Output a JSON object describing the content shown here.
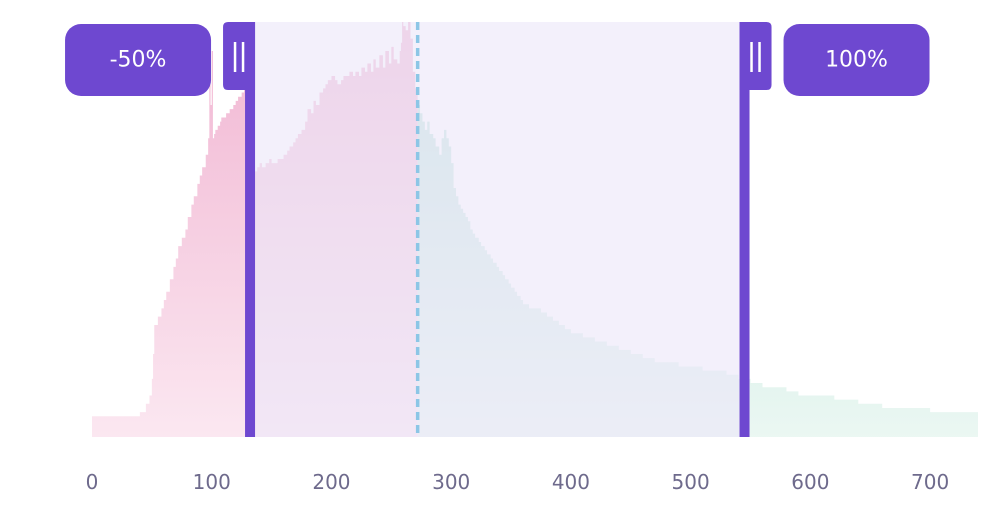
{
  "chart_data": {
    "type": "area",
    "title": "",
    "xlabel": "",
    "ylabel": "",
    "xlim": [
      0,
      740
    ],
    "ylim": [
      0,
      100
    ],
    "grid": false,
    "x_ticks": [
      0,
      100,
      200,
      300,
      400,
      500,
      600,
      700
    ],
    "x_tick_labels": [
      "0",
      "100",
      "200",
      "300",
      "400",
      "500",
      "600",
      "700"
    ],
    "marker_value": 272,
    "range": {
      "start": 132,
      "end": 545,
      "start_label": "-50%",
      "end_label": "100%"
    },
    "colors": {
      "left_area": "#f2b8d4",
      "right_area": "#bfe6d6",
      "range_fill": "#ece6f9",
      "handle": "#6e48d0",
      "marker": "#8cc6e6",
      "tick_text": "#6e6a8c"
    },
    "x": [
      0,
      30,
      40,
      45,
      48,
      50,
      51,
      52,
      55,
      58,
      60,
      62,
      65,
      68,
      70,
      72,
      75,
      78,
      80,
      83,
      85,
      88,
      90,
      92,
      95,
      97,
      98,
      99,
      100,
      101,
      102,
      103,
      105,
      107,
      108,
      110,
      112,
      115,
      118,
      120,
      122,
      125,
      127,
      130,
      132,
      135,
      138,
      140,
      142,
      145,
      148,
      150,
      152,
      155,
      158,
      160,
      163,
      165,
      168,
      170,
      172,
      175,
      178,
      180,
      183,
      185,
      187,
      190,
      193,
      195,
      197,
      200,
      203,
      205,
      208,
      210,
      212,
      215,
      218,
      220,
      223,
      225,
      228,
      230,
      233,
      235,
      237,
      240,
      243,
      245,
      248,
      250,
      252,
      255,
      257,
      258,
      259,
      260,
      262,
      264,
      266,
      268,
      270,
      272,
      274,
      276,
      278,
      280,
      282,
      285,
      287,
      290,
      292,
      294,
      296,
      298,
      300,
      302,
      304,
      306,
      308,
      310,
      312,
      314,
      316,
      318,
      320,
      323,
      325,
      328,
      330,
      333,
      335,
      338,
      340,
      343,
      345,
      348,
      350,
      353,
      355,
      358,
      360,
      365,
      370,
      375,
      380,
      385,
      390,
      395,
      400,
      410,
      420,
      430,
      440,
      450,
      460,
      470,
      480,
      490,
      500,
      510,
      520,
      530,
      540,
      550,
      560,
      570,
      580,
      590,
      600,
      620,
      640,
      660,
      680,
      700,
      720,
      740
    ],
    "values": [
      5,
      5,
      6,
      8,
      10,
      14,
      20,
      27,
      29,
      31,
      33,
      35,
      38,
      41,
      43,
      46,
      48,
      50,
      53,
      56,
      58,
      61,
      63,
      65,
      68,
      72,
      85,
      80,
      93,
      72,
      73,
      74,
      75,
      76,
      77,
      77,
      78,
      79,
      80,
      81,
      82,
      83,
      84,
      85,
      0,
      64,
      65,
      66,
      65,
      66,
      67,
      66,
      66,
      67,
      67,
      68,
      69,
      70,
      71,
      72,
      73,
      74,
      76,
      79,
      78,
      81,
      80,
      83,
      84,
      85,
      86,
      87,
      86,
      85,
      86,
      87,
      87,
      88,
      87,
      88,
      87,
      89,
      88,
      90,
      88,
      91,
      89,
      92,
      89,
      93,
      90,
      94,
      91,
      90,
      93,
      95,
      100,
      99,
      98,
      100,
      96,
      88,
      84,
      80,
      78,
      76,
      74,
      76,
      73,
      72,
      70,
      68,
      72,
      74,
      72,
      70,
      66,
      60,
      58,
      56,
      55,
      54,
      53,
      52,
      50,
      49,
      48,
      47,
      46,
      45,
      44,
      43,
      42,
      41,
      40,
      39,
      38,
      37,
      36,
      35,
      34,
      33,
      32,
      31,
      31,
      30,
      29,
      28,
      27,
      26,
      25,
      24,
      23,
      22,
      21,
      20,
      19,
      18,
      18,
      17,
      17,
      16,
      16,
      15,
      14,
      13,
      12,
      12,
      11,
      10,
      10,
      9,
      8,
      7,
      7,
      6,
      6,
      6
    ]
  }
}
